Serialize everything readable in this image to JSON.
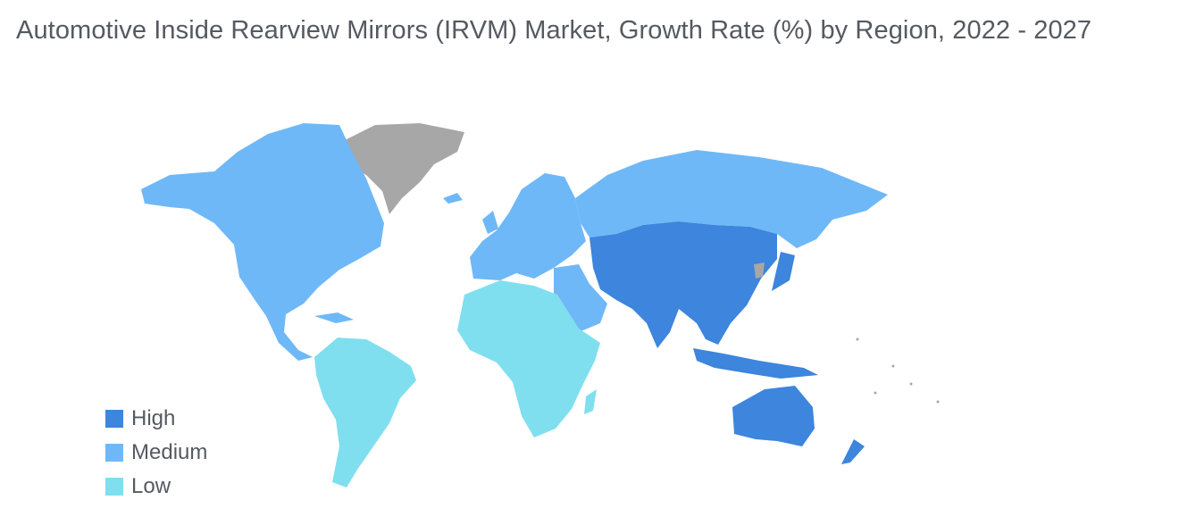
{
  "title": "Automotive Inside Rearview Mirrors (IRVM) Market, Growth Rate (%) by Region, 2022 - 2027",
  "legend": [
    {
      "label": "High",
      "color": "#3d85dd"
    },
    {
      "label": "Medium",
      "color": "#6fb8f7"
    },
    {
      "label": "Low",
      "color": "#7fdfef"
    }
  ],
  "colors": {
    "high": "#3d85dd",
    "medium": "#6fb8f7",
    "low": "#7fdfef",
    "no_data": "#a7a7a7"
  },
  "regions": [
    {
      "name": "North America",
      "level": "medium"
    },
    {
      "name": "Europe",
      "level": "medium"
    },
    {
      "name": "Russia",
      "level": "medium"
    },
    {
      "name": "Middle East",
      "level": "medium"
    },
    {
      "name": "Greenland",
      "level": "no_data"
    },
    {
      "name": "South America",
      "level": "low"
    },
    {
      "name": "Africa",
      "level": "low"
    },
    {
      "name": "Asia-Pacific",
      "level": "high"
    },
    {
      "name": "Australia",
      "level": "high"
    }
  ]
}
